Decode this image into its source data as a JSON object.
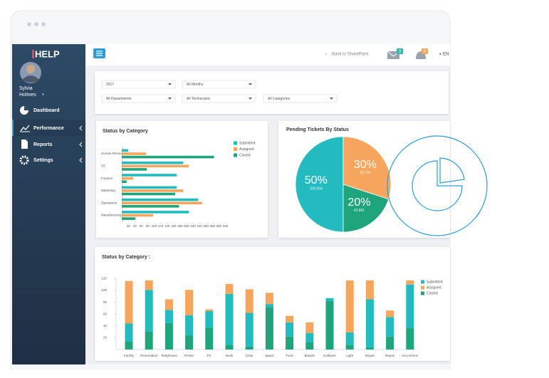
{
  "sidebar": {
    "logo": "HELP",
    "user_first": "Sylvia",
    "user_last": "Holmes",
    "nav": [
      "Dashboard",
      "Performance",
      "Reports",
      "Settings"
    ]
  },
  "topbar": {
    "back_link": "Back to SharePoint",
    "mail_badge": 3,
    "bell_badge": 8,
    "language": "EN"
  },
  "filters": [
    "2017",
    "All Months",
    "All Departments",
    "All Technicians",
    "All Categories"
  ],
  "chart_data": [
    {
      "type": "bar",
      "orientation": "horizontal",
      "title": "Status by Category",
      "categories": [
        "Human Resource",
        "CE",
        "Finance",
        "Marketing",
        "Operations",
        "Manufacturing"
      ],
      "series": [
        {
          "name": "Submitted",
          "color": "#22bcc0",
          "values": [
            20,
            190,
            170,
            170,
            236,
            207
          ]
        },
        {
          "name": "Assigned",
          "color": "#f6a55d",
          "values": [
            75,
            207,
            35,
            190,
            248,
            97
          ]
        },
        {
          "name": "Closed",
          "color": "#1ea57c",
          "values": [
            285,
            77,
            15,
            165,
            177,
            42
          ]
        }
      ],
      "xlim": [
        0,
        330
      ],
      "xticks": [
        20,
        40,
        60,
        80,
        100,
        120,
        140,
        160,
        180,
        200,
        220,
        240,
        260,
        280,
        300,
        320
      ]
    },
    {
      "type": "pie",
      "title": "Pending Tickets By Status",
      "values": [
        50,
        30,
        20
      ],
      "value_labels": [
        "50%",
        "30%",
        "20%"
      ],
      "count_labels": [
        "109,654",
        "65,792",
        "43,861"
      ],
      "colors": [
        "#22bcc0",
        "#f6a55d",
        "#1ea57c"
      ]
    },
    {
      "type": "bar",
      "stacked": true,
      "title": "Status by Category :",
      "categories": [
        "Facility",
        "Reservation",
        "Telephones",
        "Printer",
        "PC",
        "Desk",
        "Chair",
        "Space",
        "Tools",
        "Boards",
        "Software",
        "Light",
        "Repair",
        "Repair",
        "Uncommon"
      ],
      "series": [
        {
          "name": "Submitted",
          "color": "#22bcc0",
          "values": [
            30,
            70,
            22,
            34,
            28,
            86,
            57,
            5,
            24,
            16,
            5,
            21,
            82,
            33,
            74
          ]
        },
        {
          "name": "Assigned",
          "color": "#f6a55d",
          "values": [
            72,
            16,
            18,
            43,
            3,
            17,
            40,
            19,
            11,
            18,
            0,
            88,
            32,
            11,
            7
          ]
        },
        {
          "name": "Closed",
          "color": "#1ea57c",
          "values": [
            14,
            31,
            45,
            24,
            37,
            8,
            5,
            72,
            22,
            12,
            82,
            8,
            3,
            22,
            36
          ]
        }
      ],
      "stack_order": [
        2,
        0,
        1
      ],
      "ylim": [
        0,
        120
      ],
      "yticks": [
        20,
        40,
        60,
        80,
        100,
        120
      ]
    }
  ]
}
